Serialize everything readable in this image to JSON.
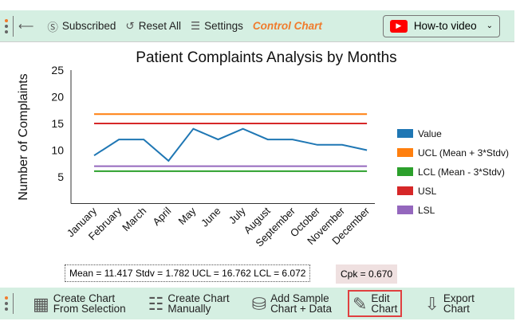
{
  "toolbar": {
    "subscribed": "Subscribed",
    "reset": "Reset All",
    "settings": "Settings",
    "title": "Control Chart",
    "video": "How-to video"
  },
  "bottom": {
    "b1": [
      "Create Chart",
      "From Selection"
    ],
    "b2": [
      "Create Chart",
      "Manually"
    ],
    "b3": [
      "Add Sample",
      "Chart + Data"
    ],
    "b4": [
      "Edit",
      "Chart"
    ],
    "b5": [
      "Export",
      "Chart"
    ]
  },
  "stats": {
    "text": "Mean = 11.417  Stdv = 1.782  UCL = 16.762  LCL = 6.072",
    "cpk": "Cpk = 0.670"
  },
  "chart_data": {
    "type": "line",
    "title": "Patient Complaints Analysis by Months",
    "xlabel": "",
    "ylabel": "Number of Complaints",
    "ylim": [
      0,
      25
    ],
    "yticks": [
      5,
      10,
      15,
      20,
      25
    ],
    "legend": "right",
    "categories": [
      "January",
      "February",
      "March",
      "April",
      "May",
      "June",
      "July",
      "August",
      "September",
      "October",
      "November",
      "December"
    ],
    "series": [
      {
        "name": "Value",
        "color": "#1f77b4",
        "values": [
          9,
          12,
          12,
          8,
          14,
          12,
          14,
          12,
          12,
          11,
          11,
          10
        ]
      },
      {
        "name": "UCL (Mean + 3*Stdv)",
        "color": "#ff7f0e",
        "values": [
          16.762,
          16.762,
          16.762,
          16.762,
          16.762,
          16.762,
          16.762,
          16.762,
          16.762,
          16.762,
          16.762,
          16.762
        ]
      },
      {
        "name": "LCL (Mean - 3*Stdv)",
        "color": "#2ca02c",
        "values": [
          6.072,
          6.072,
          6.072,
          6.072,
          6.072,
          6.072,
          6.072,
          6.072,
          6.072,
          6.072,
          6.072,
          6.072
        ]
      },
      {
        "name": "USL",
        "color": "#d62728",
        "values": [
          15,
          15,
          15,
          15,
          15,
          15,
          15,
          15,
          15,
          15,
          15,
          15
        ]
      },
      {
        "name": "LSL",
        "color": "#9467bd",
        "values": [
          7,
          7,
          7,
          7,
          7,
          7,
          7,
          7,
          7,
          7,
          7,
          7
        ]
      }
    ]
  }
}
